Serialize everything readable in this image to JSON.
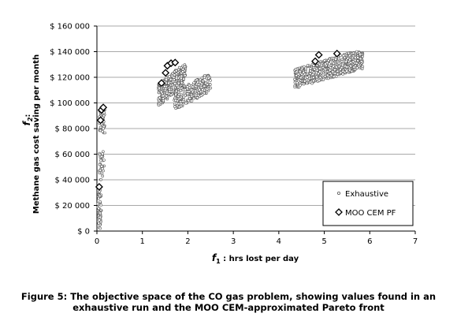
{
  "caption": {
    "line1": "Figure 5: The objective space of the CO gas problem, showing values found in an",
    "line2": "exhaustive run and the MOO CEM-approximated Pareto front"
  },
  "chart_data": {
    "type": "scatter",
    "title": "",
    "xlabel_var": "f",
    "xlabel_sub": "1",
    "xlabel_rest": " : hrs lost per day",
    "ylabel_var": "f",
    "ylabel_sub": "2",
    "ylabel_colon": ":",
    "ylabel_line1": "Methane gas cost saving per month",
    "xlim": [
      0,
      7
    ],
    "ylim": [
      0,
      160000
    ],
    "x_ticks": [
      "0",
      "1",
      "2",
      "3",
      "4",
      "5",
      "6",
      "7"
    ],
    "y_ticks": [
      "$ 0",
      "$ 20 000",
      "$ 40 000",
      "$ 60 000",
      "$ 80 000",
      "$ 100 000",
      "$ 120 000",
      "$ 140 000",
      "$ 160 000"
    ],
    "grid": "horizontal",
    "legend_position": "bottom-right",
    "legend": [
      "Exhaustive",
      "MOO CEM PF"
    ],
    "series": [
      {
        "name": "Exhaustive",
        "marker": "small-circle",
        "clusters": [
          {
            "x_range": [
              0.02,
              0.1
            ],
            "y_range": [
              2000,
              32000
            ],
            "count": 45
          },
          {
            "x_range": [
              0.05,
              0.16
            ],
            "y_range": [
              40000,
              62000
            ],
            "count": 35
          },
          {
            "x_range": [
              0.05,
              0.18
            ],
            "y_range": [
              76000,
              96000
            ],
            "count": 50
          },
          {
            "x_range": [
              1.35,
              1.95
            ],
            "y_range": [
              98000,
              130000
            ],
            "count": 320
          },
          {
            "x_range": [
              1.7,
              2.5
            ],
            "y_range": [
              95000,
              122000
            ],
            "count": 260
          },
          {
            "x_range": [
              4.35,
              5.85
            ],
            "y_range": [
              112000,
              140000
            ],
            "count": 650
          }
        ]
      },
      {
        "name": "MOO CEM PF",
        "marker": "diamond",
        "points": [
          {
            "x": 0.05,
            "y": 34500
          },
          {
            "x": 0.08,
            "y": 86500
          },
          {
            "x": 0.1,
            "y": 94500
          },
          {
            "x": 0.14,
            "y": 96500
          },
          {
            "x": 1.42,
            "y": 115500
          },
          {
            "x": 1.51,
            "y": 123500
          },
          {
            "x": 1.55,
            "y": 129000
          },
          {
            "x": 1.63,
            "y": 131000
          },
          {
            "x": 1.72,
            "y": 131500
          },
          {
            "x": 4.8,
            "y": 132500
          },
          {
            "x": 4.88,
            "y": 137500
          },
          {
            "x": 5.28,
            "y": 138500
          }
        ]
      }
    ]
  }
}
